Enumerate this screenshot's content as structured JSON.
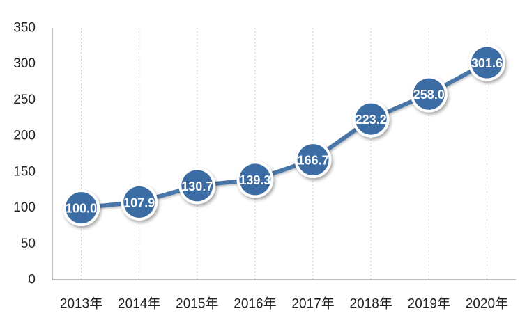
{
  "chart_data": {
    "type": "line",
    "title": "",
    "xlabel": "",
    "ylabel": "",
    "categories": [
      "2013年",
      "2014年",
      "2015年",
      "2016年",
      "2017年",
      "2018年",
      "2019年",
      "2020年"
    ],
    "series": [
      {
        "values": [
          100.0,
          107.9,
          130.7,
          139.3,
          166.7,
          223.2,
          258.0,
          301.6
        ],
        "labels": [
          "100.0",
          "107.9",
          "130.7",
          "139.3",
          "166.7",
          "223.2",
          "258.0",
          "301.6"
        ]
      }
    ],
    "ylim": [
      0,
      350
    ],
    "yticks": [
      "0",
      "50",
      "100",
      "150",
      "200",
      "250",
      "300",
      "350"
    ],
    "grid": "vertical-dotted",
    "legend": "none",
    "colors": {
      "line": "#4a76a8",
      "marker_fill": "#3c6ca4",
      "marker_ring": "#ffffff",
      "axis": "#808080"
    }
  }
}
